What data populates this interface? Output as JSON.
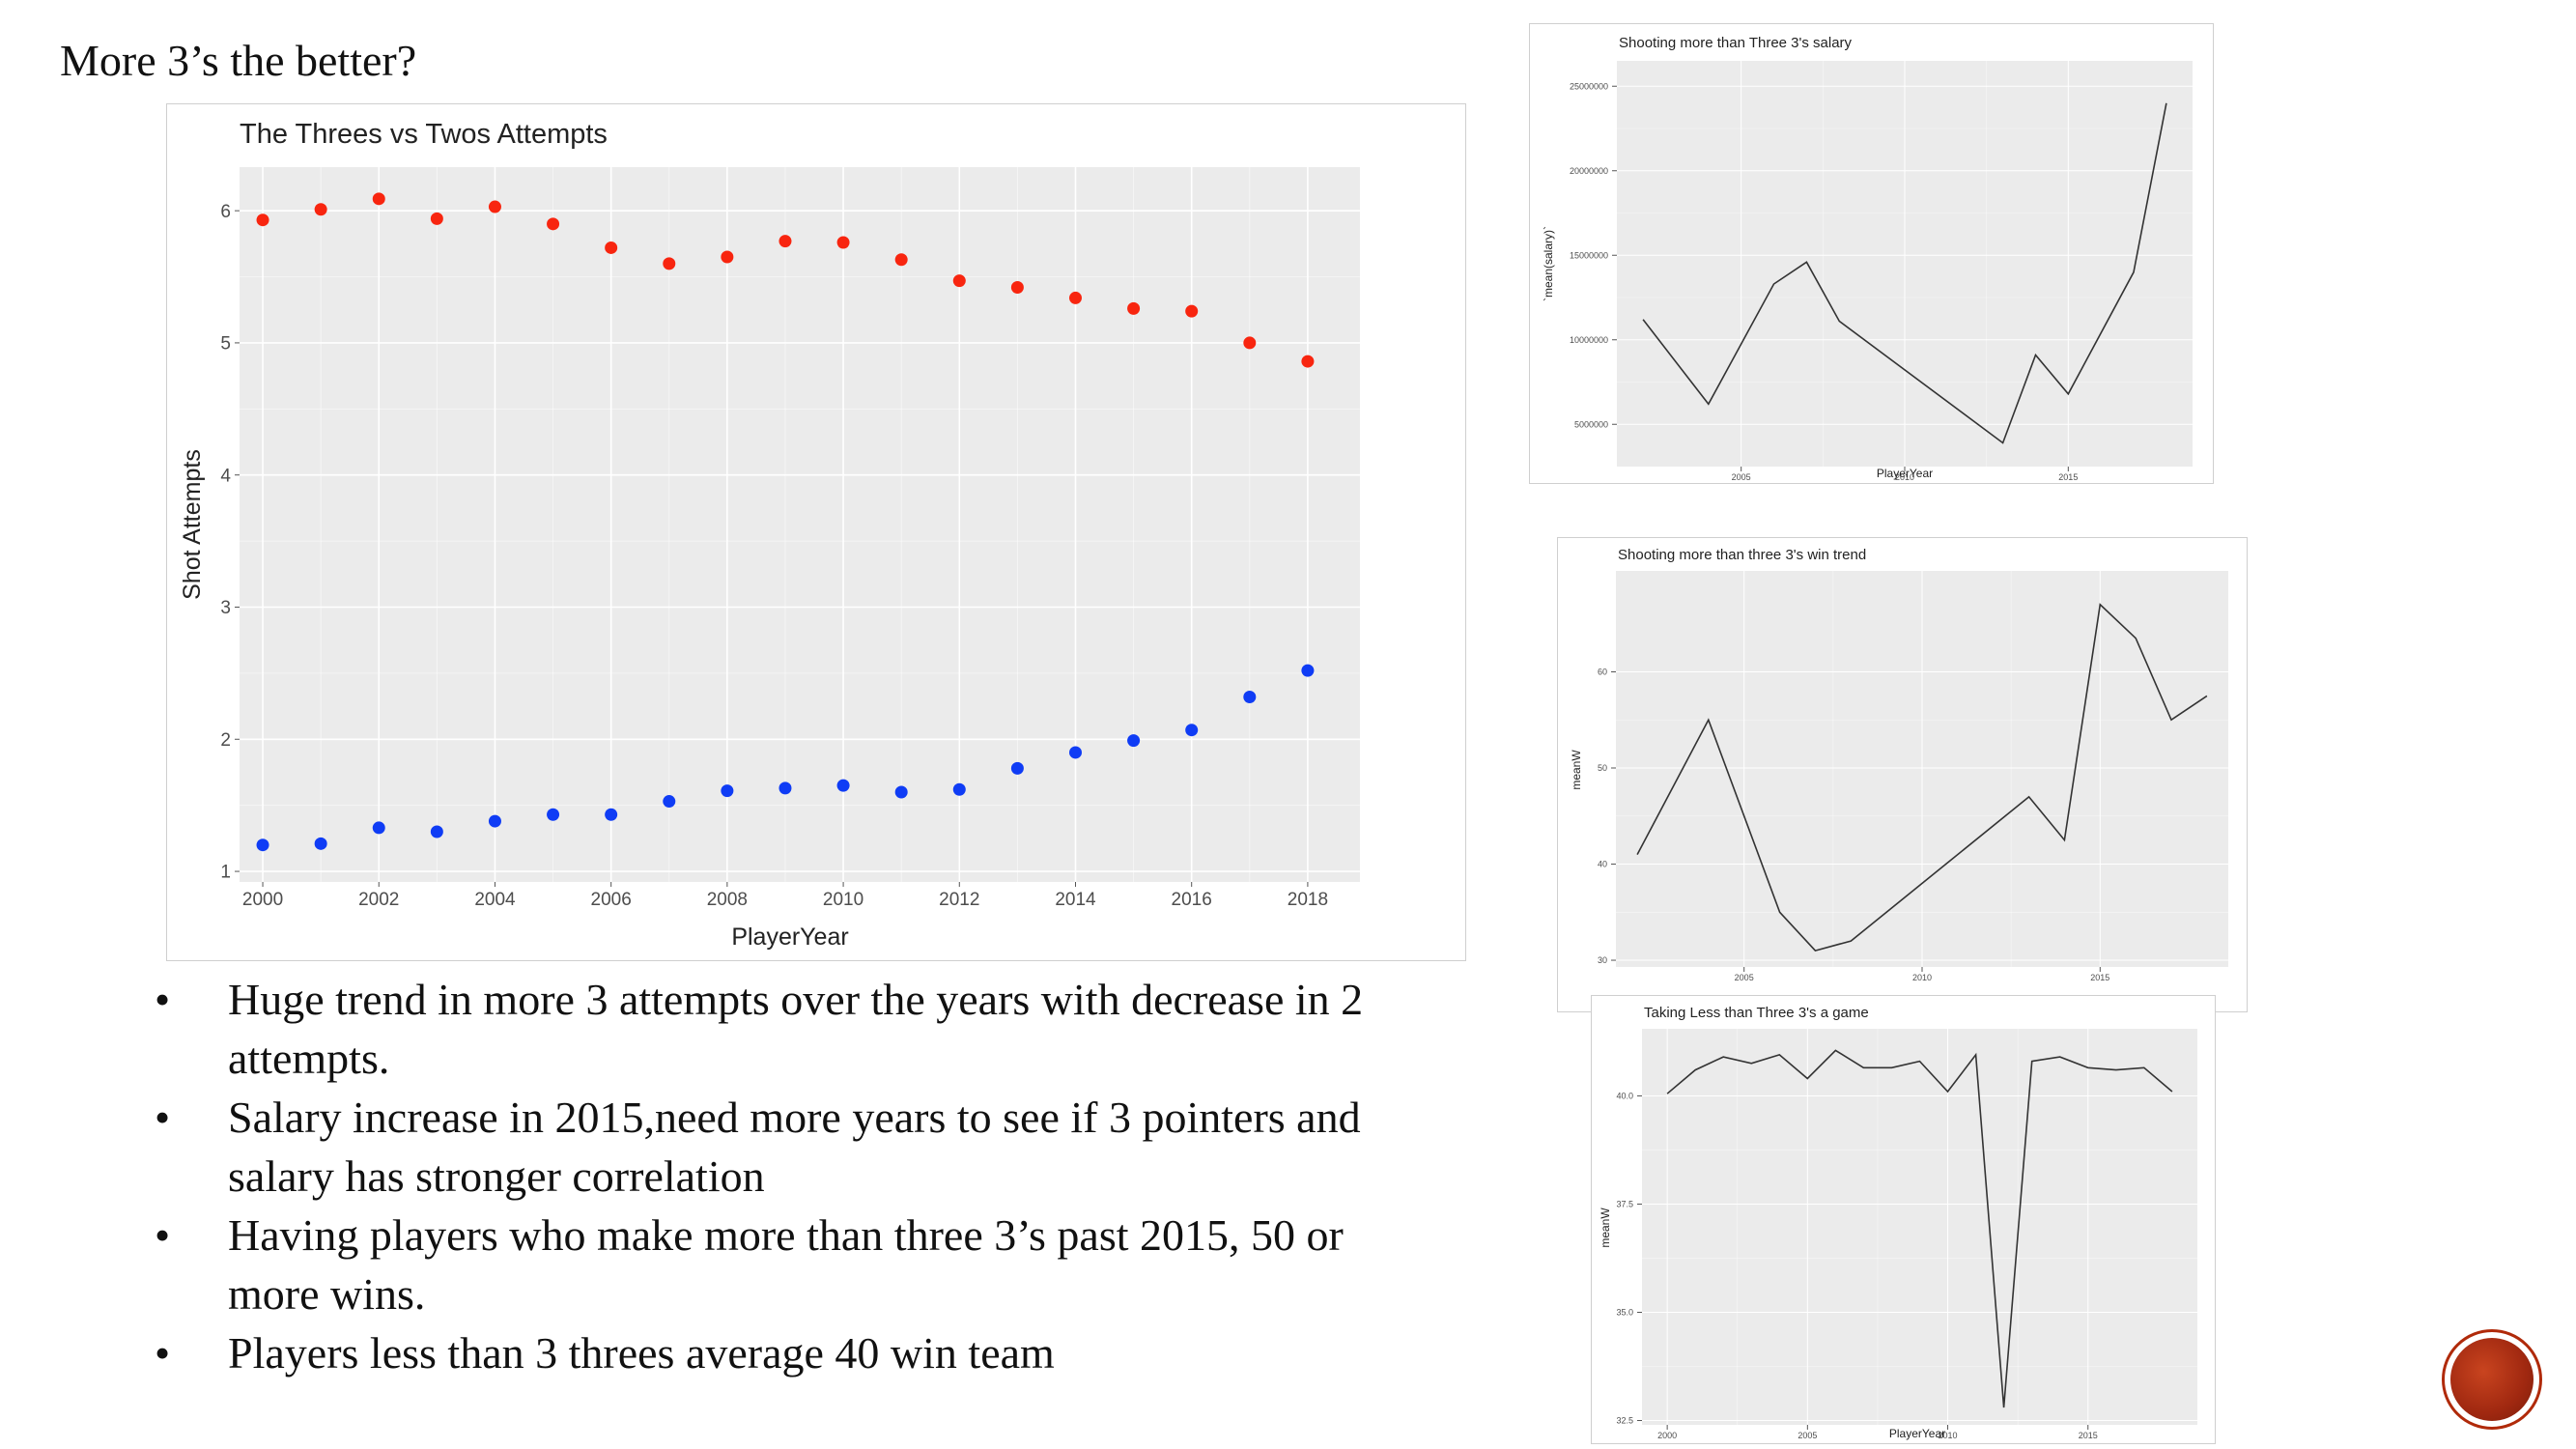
{
  "slide": {
    "title": "More 3’s the better?",
    "bullets": [
      "Huge trend in more 3 attempts over the years with decrease in 2 attempts.",
      "Salary increase in 2015,need more years to see if 3 pointers and salary has stronger correlation",
      "Having players who make more than three 3’s past 2015, 50 or more wins.",
      "Players less than 3 threes average 40 win team"
    ],
    "bullet_glyph": "•"
  },
  "colors": {
    "panel": "#ebebeb",
    "grid": "#ffffff",
    "twos": "#f8250f",
    "threes": "#0f3cf5",
    "line": "#333333",
    "logo": "#a02810"
  },
  "chart_data": [
    {
      "type": "scatter",
      "title": "The Threes vs Twos Attempts",
      "xlabel": "PlayerYear",
      "ylabel": "Shot Attempts",
      "xlim": [
        1999.6,
        2018.9
      ],
      "ylim": [
        0.92,
        6.33
      ],
      "xticks": [
        2000,
        2002,
        2004,
        2006,
        2008,
        2010,
        2012,
        2014,
        2016,
        2018
      ],
      "yticks": [
        1,
        2,
        3,
        4,
        5,
        6
      ],
      "grid": true,
      "legend": "none",
      "x": [
        2000,
        2001,
        2002,
        2003,
        2004,
        2005,
        2006,
        2007,
        2008,
        2009,
        2010,
        2011,
        2012,
        2013,
        2014,
        2015,
        2016,
        2017,
        2018
      ],
      "series": [
        {
          "values": [
            5.93,
            6.01,
            6.09,
            5.94,
            6.03,
            5.9,
            5.72,
            5.6,
            5.65,
            5.77,
            5.76,
            5.63,
            5.47,
            5.42,
            5.34,
            5.26,
            5.24,
            5.0,
            4.86
          ],
          "color": "#f8250f"
        },
        {
          "values": [
            1.2,
            1.21,
            1.33,
            1.3,
            1.38,
            1.43,
            1.43,
            1.53,
            1.61,
            1.63,
            1.65,
            1.6,
            1.62,
            1.78,
            1.9,
            1.99,
            2.07,
            2.32,
            2.52
          ],
          "color": "#0f3cf5"
        }
      ]
    },
    {
      "type": "line",
      "title": "Shooting more than Three 3's salary",
      "xlabel": "PlayerYear",
      "ylabel": "`mean(salary)`",
      "xlim": [
        2001.2,
        2018.8
      ],
      "ylim": [
        2500000,
        26500000
      ],
      "xticks": [
        2005,
        2010,
        2015
      ],
      "yticks": [
        5000000,
        10000000,
        15000000,
        20000000,
        25000000
      ],
      "grid": true,
      "x": [
        2002,
        2004,
        2006,
        2007,
        2008,
        2013,
        2014,
        2015,
        2017,
        2018
      ],
      "values": [
        11200000,
        6200000,
        13300000,
        14600000,
        11100000,
        3900000,
        9100000,
        6800000,
        14000000,
        24000000
      ]
    },
    {
      "type": "line",
      "title": "Shooting more than three 3's win trend",
      "xlabel": "PlayerYear",
      "ylabel": "meanW",
      "xlim": [
        2001.4,
        2018.6
      ],
      "ylim": [
        29.3,
        70.5
      ],
      "xticks": [
        2005,
        2010,
        2015
      ],
      "yticks": [
        30,
        40,
        50,
        60
      ],
      "grid": true,
      "x": [
        2002,
        2004,
        2006,
        2007,
        2008,
        2013,
        2014,
        2015,
        2016,
        2017,
        2018
      ],
      "values": [
        41,
        55,
        35,
        31,
        32,
        47,
        42.5,
        67,
        63.5,
        55,
        57.5
      ]
    },
    {
      "type": "line",
      "title": "Taking Less than Three 3's a game",
      "xlabel": "PlayerYear",
      "ylabel": "meanW",
      "xlim": [
        1999.1,
        2018.9
      ],
      "ylim": [
        32.4,
        41.55
      ],
      "xticks": [
        2000,
        2005,
        2010,
        2015
      ],
      "ytick_labels": [
        "32.5",
        "35.0",
        "37.5",
        "40.0"
      ],
      "yticks": [
        32.5,
        35,
        37.5,
        40
      ],
      "grid": true,
      "x": [
        2000,
        2001,
        2002,
        2003,
        2004,
        2005,
        2006,
        2007,
        2008,
        2009,
        2010,
        2011,
        2012,
        2013,
        2014,
        2015,
        2016,
        2017,
        2018
      ],
      "values": [
        40.05,
        40.6,
        40.9,
        40.75,
        40.95,
        40.4,
        41.05,
        40.65,
        40.65,
        40.8,
        40.1,
        40.95,
        32.8,
        40.8,
        40.9,
        40.65,
        40.6,
        40.65,
        40.1
      ]
    }
  ]
}
